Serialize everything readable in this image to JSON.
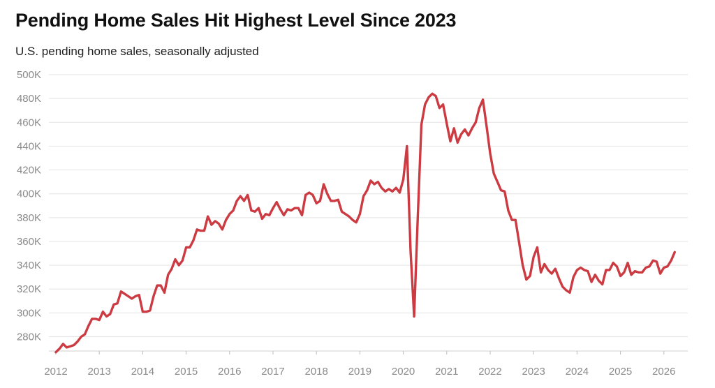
{
  "chart_data": {
    "type": "line",
    "title": "Pending Home Sales Hit Highest Level Since 2023",
    "subtitle": "U.S. pending home sales, seasonally adjusted",
    "xlabel": "",
    "ylabel": "",
    "xlim": [
      2012.0,
      2026.55
    ],
    "ylim": [
      268000,
      500000
    ],
    "y_ticks": [
      280000,
      300000,
      320000,
      340000,
      360000,
      380000,
      400000,
      420000,
      440000,
      460000,
      480000,
      500000
    ],
    "y_tick_labels": [
      "280K",
      "300K",
      "320K",
      "340K",
      "360K",
      "380K",
      "400K",
      "420K",
      "440K",
      "460K",
      "480K",
      "500K"
    ],
    "x_ticks": [
      2012,
      2013,
      2014,
      2015,
      2016,
      2017,
      2018,
      2019,
      2020,
      2021,
      2022,
      2023,
      2024,
      2025,
      2026
    ],
    "x_tick_labels": [
      "2012",
      "2013",
      "2014",
      "2015",
      "2016",
      "2017",
      "2018",
      "2019",
      "2020",
      "2021",
      "2022",
      "2023",
      "2024",
      "2025",
      "2026"
    ],
    "grid": true,
    "legend": "none",
    "line_color": "#cc3a42",
    "series": [
      {
        "name": "",
        "x": [
          2012.0,
          2012.083,
          2012.167,
          2012.25,
          2012.333,
          2012.417,
          2012.5,
          2012.583,
          2012.667,
          2012.75,
          2012.833,
          2012.917,
          2013.0,
          2013.083,
          2013.167,
          2013.25,
          2013.333,
          2013.417,
          2013.5,
          2013.583,
          2013.667,
          2013.75,
          2013.833,
          2013.917,
          2014.0,
          2014.083,
          2014.167,
          2014.25,
          2014.333,
          2014.417,
          2014.5,
          2014.583,
          2014.667,
          2014.75,
          2014.833,
          2014.917,
          2015.0,
          2015.083,
          2015.167,
          2015.25,
          2015.333,
          2015.417,
          2015.5,
          2015.583,
          2015.667,
          2015.75,
          2015.833,
          2015.917,
          2016.0,
          2016.083,
          2016.167,
          2016.25,
          2016.333,
          2016.417,
          2016.5,
          2016.583,
          2016.667,
          2016.75,
          2016.833,
          2016.917,
          2017.0,
          2017.083,
          2017.167,
          2017.25,
          2017.333,
          2017.417,
          2017.5,
          2017.583,
          2017.667,
          2017.75,
          2017.833,
          2017.917,
          2018.0,
          2018.083,
          2018.167,
          2018.25,
          2018.333,
          2018.417,
          2018.5,
          2018.583,
          2018.667,
          2018.75,
          2018.833,
          2018.917,
          2019.0,
          2019.083,
          2019.167,
          2019.25,
          2019.333,
          2019.417,
          2019.5,
          2019.583,
          2019.667,
          2019.75,
          2019.833,
          2019.917,
          2020.0,
          2020.083,
          2020.167,
          2020.25,
          2020.333,
          2020.417,
          2020.5,
          2020.583,
          2020.667,
          2020.75,
          2020.833,
          2020.917,
          2021.0,
          2021.083,
          2021.167,
          2021.25,
          2021.333,
          2021.417,
          2021.5,
          2021.583,
          2021.667,
          2021.75,
          2021.833,
          2021.917,
          2022.0,
          2022.083,
          2022.167,
          2022.25,
          2022.333,
          2022.417,
          2022.5,
          2022.583,
          2022.667,
          2022.75,
          2022.833,
          2022.917,
          2023.0,
          2023.083,
          2023.167,
          2023.25,
          2023.333,
          2023.417,
          2023.5,
          2023.583,
          2023.667,
          2023.75,
          2023.833,
          2023.917,
          2024.0,
          2024.083,
          2024.167,
          2024.25,
          2024.333,
          2024.417,
          2024.5,
          2024.583,
          2024.667,
          2024.75,
          2024.833,
          2024.917,
          2025.0,
          2025.083,
          2025.167,
          2025.25,
          2025.333,
          2025.417,
          2025.5,
          2025.583,
          2025.667,
          2025.75,
          2025.833,
          2025.917,
          2026.0,
          2026.083,
          2026.167,
          2026.25
        ],
        "y": [
          267000,
          270000,
          274000,
          271000,
          272000,
          273000,
          276000,
          280000,
          282000,
          289000,
          295000,
          295000,
          294000,
          301000,
          297000,
          299000,
          307000,
          308000,
          318000,
          316000,
          314000,
          312000,
          314000,
          315000,
          301000,
          301000,
          302000,
          314000,
          323000,
          323000,
          317000,
          332000,
          337000,
          345000,
          340000,
          344000,
          355000,
          355000,
          361000,
          370000,
          369000,
          369000,
          381000,
          374000,
          377000,
          375000,
          370000,
          378000,
          383000,
          386000,
          394000,
          398000,
          394000,
          399000,
          386000,
          385000,
          388000,
          379000,
          383000,
          382000,
          388000,
          393000,
          387000,
          382000,
          387000,
          386000,
          388000,
          388000,
          382000,
          399000,
          401000,
          399000,
          392000,
          394000,
          408000,
          400000,
          394000,
          394000,
          395000,
          385000,
          383000,
          381000,
          378000,
          376000,
          383000,
          398000,
          403000,
          411000,
          408000,
          410000,
          405000,
          402000,
          404000,
          402000,
          405000,
          401000,
          412000,
          440000,
          352000,
          297000,
          380000,
          458000,
          475000,
          481000,
          484000,
          482000,
          472000,
          475000,
          459000,
          444000,
          455000,
          443000,
          450000,
          454000,
          449000,
          455000,
          460000,
          472000,
          479000,
          457000,
          434000,
          417000,
          410000,
          403000,
          402000,
          386000,
          378000,
          378000,
          359000,
          340000,
          328000,
          331000,
          347000,
          355000,
          334000,
          341000,
          336000,
          333000,
          337000,
          329000,
          322000,
          319000,
          317000,
          330000,
          336000,
          338000,
          336000,
          335000,
          326000,
          332000,
          327000,
          324000,
          336000,
          336000,
          342000,
          339000,
          331000,
          334000,
          342000,
          332000,
          335000,
          334000,
          334000,
          338000,
          339000,
          344000,
          343000,
          333000,
          338000,
          339000,
          344000,
          351000
        ]
      }
    ]
  }
}
